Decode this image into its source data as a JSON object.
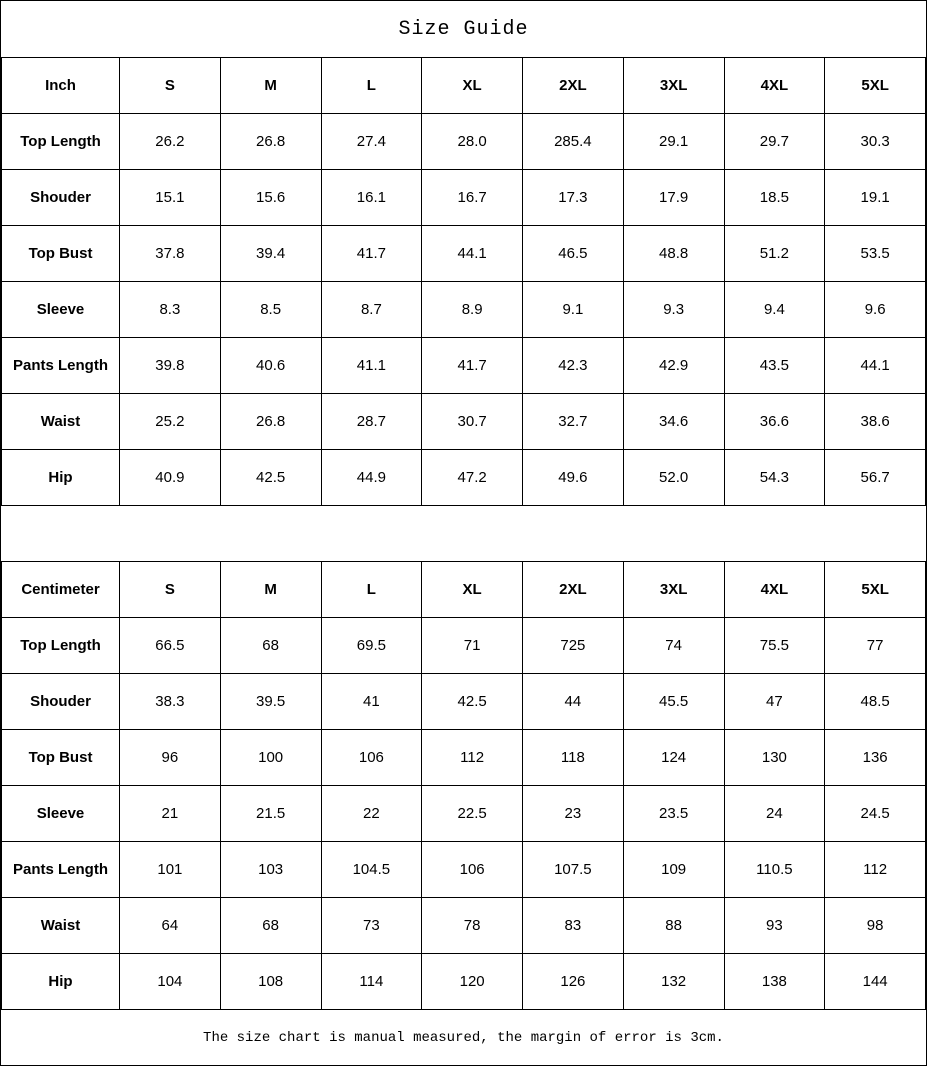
{
  "title": "Size Guide",
  "footer_note": "The size chart is manual measured, the margin of error is 3cm.",
  "colors": {
    "border": "#000000",
    "text": "#000000",
    "background": "#ffffff"
  },
  "tables": [
    {
      "unit_label": "Inch",
      "sizes": [
        "S",
        "M",
        "L",
        "XL",
        "2XL",
        "3XL",
        "4XL",
        "5XL"
      ],
      "rows": [
        {
          "label": "Top Length",
          "values": [
            "26.2",
            "26.8",
            "27.4",
            "28.0",
            "285.4",
            "29.1",
            "29.7",
            "30.3"
          ]
        },
        {
          "label": "Shouder",
          "values": [
            "15.1",
            "15.6",
            "16.1",
            "16.7",
            "17.3",
            "17.9",
            "18.5",
            "19.1"
          ]
        },
        {
          "label": "Top Bust",
          "values": [
            "37.8",
            "39.4",
            "41.7",
            "44.1",
            "46.5",
            "48.8",
            "51.2",
            "53.5"
          ]
        },
        {
          "label": "Sleeve",
          "values": [
            "8.3",
            "8.5",
            "8.7",
            "8.9",
            "9.1",
            "9.3",
            "9.4",
            "9.6"
          ]
        },
        {
          "label": "Pants Length",
          "values": [
            "39.8",
            "40.6",
            "41.1",
            "41.7",
            "42.3",
            "42.9",
            "43.5",
            "44.1"
          ]
        },
        {
          "label": "Waist",
          "values": [
            "25.2",
            "26.8",
            "28.7",
            "30.7",
            "32.7",
            "34.6",
            "36.6",
            "38.6"
          ]
        },
        {
          "label": "Hip",
          "values": [
            "40.9",
            "42.5",
            "44.9",
            "47.2",
            "49.6",
            "52.0",
            "54.3",
            "56.7"
          ]
        }
      ]
    },
    {
      "unit_label": "Centimeter",
      "sizes": [
        "S",
        "M",
        "L",
        "XL",
        "2XL",
        "3XL",
        "4XL",
        "5XL"
      ],
      "rows": [
        {
          "label": "Top Length",
          "values": [
            "66.5",
            "68",
            "69.5",
            "71",
            "725",
            "74",
            "75.5",
            "77"
          ]
        },
        {
          "label": "Shouder",
          "values": [
            "38.3",
            "39.5",
            "41",
            "42.5",
            "44",
            "45.5",
            "47",
            "48.5"
          ]
        },
        {
          "label": "Top Bust",
          "values": [
            "96",
            "100",
            "106",
            "112",
            "118",
            "124",
            "130",
            "136"
          ]
        },
        {
          "label": "Sleeve",
          "values": [
            "21",
            "21.5",
            "22",
            "22.5",
            "23",
            "23.5",
            "24",
            "24.5"
          ]
        },
        {
          "label": "Pants Length",
          "values": [
            "101",
            "103",
            "104.5",
            "106",
            "107.5",
            "109",
            "110.5",
            "112"
          ]
        },
        {
          "label": "Waist",
          "values": [
            "64",
            "68",
            "73",
            "78",
            "83",
            "88",
            "93",
            "98"
          ]
        },
        {
          "label": "Hip",
          "values": [
            "104",
            "108",
            "114",
            "120",
            "126",
            "132",
            "138",
            "144"
          ]
        }
      ]
    }
  ]
}
